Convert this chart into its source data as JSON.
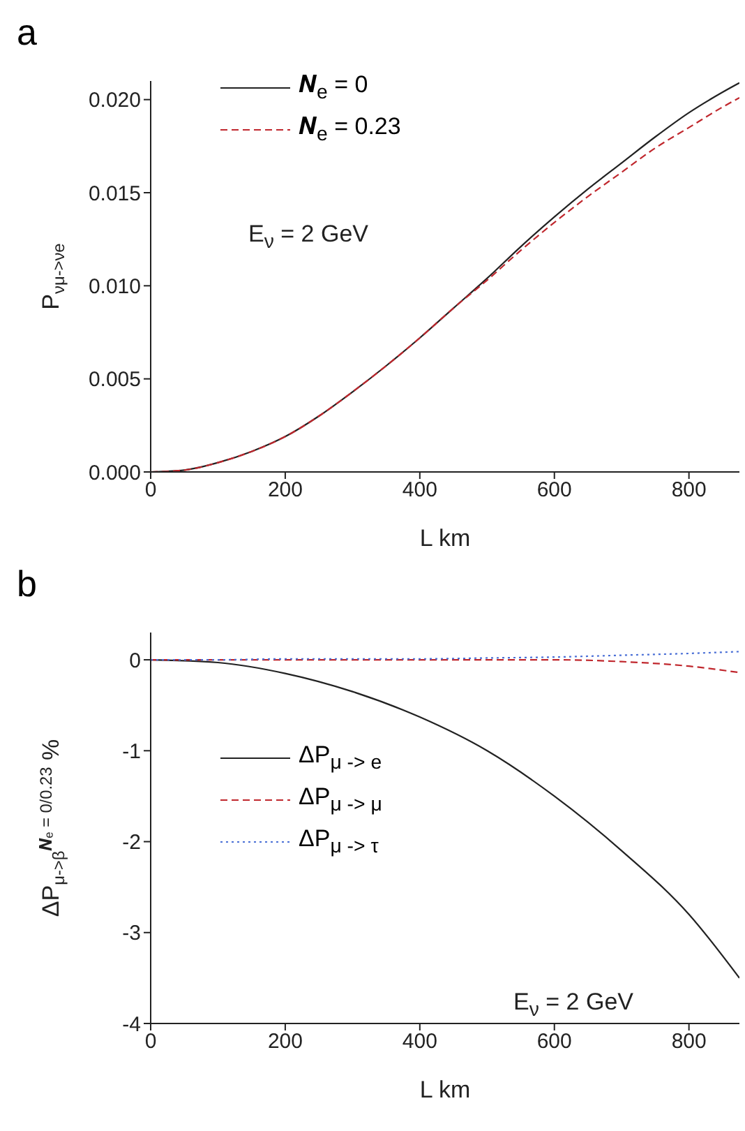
{
  "chart_data": [
    {
      "type": "line",
      "title": "a",
      "xlabel": "L km",
      "ylabel": "P$_{νμ->νe}$",
      "annotations": [
        "E$_{ν}$ = 2 GeV"
      ],
      "x": [
        0,
        50,
        100,
        150,
        200,
        250,
        300,
        350,
        400,
        450,
        500,
        550,
        600,
        650,
        700,
        750,
        800,
        850,
        875
      ],
      "xlim": [
        0,
        875
      ],
      "xticks": [
        0,
        200,
        400,
        600,
        800
      ],
      "ylim": [
        0,
        0.021
      ],
      "yticks": [
        {
          "value": 0,
          "label": "0.000"
        },
        {
          "value": 0.005,
          "label": "0.005"
        },
        {
          "value": 0.01,
          "label": "0.010"
        },
        {
          "value": 0.015,
          "label": "0.015"
        },
        {
          "value": 0.02,
          "label": "0.020"
        }
      ],
      "legend": "top left",
      "marker": "none",
      "series": [
        {
          "name": "𝑵$_{e}$ = 0",
          "color": "#222222",
          "line_style": "solid",
          "values": [
            0,
            0.0001,
            0.0005,
            0.0011,
            0.0019,
            0.003,
            0.0043,
            0.0057,
            0.0072,
            0.0088,
            0.0104,
            0.0121,
            0.0137,
            0.0152,
            0.0166,
            0.018,
            0.0193,
            0.0204,
            0.0209
          ]
        },
        {
          "name": "𝑵$_{e}$ = 0.23",
          "color": "#c0272d",
          "line_style": "dashed",
          "values": [
            0,
            0.0001,
            0.0005,
            0.0011,
            0.0019,
            0.003,
            0.0043,
            0.0057,
            0.0072,
            0.0088,
            0.0103,
            0.0119,
            0.0134,
            0.0148,
            0.0161,
            0.0174,
            0.0185,
            0.0196,
            0.0201
          ]
        }
      ]
    },
    {
      "type": "line",
      "title": "b",
      "xlabel": "L km",
      "ylabel": "ΔP$_{μ->β}$$^{𝑵ₑ = 0/0.23}$ %",
      "annotations": [
        "E$_{ν}$ = 2 GeV"
      ],
      "x": [
        0,
        100,
        200,
        300,
        400,
        500,
        600,
        700,
        800,
        875
      ],
      "xlim": [
        0,
        875
      ],
      "xticks": [
        0,
        200,
        400,
        600,
        800
      ],
      "ylim": [
        -4,
        0.3
      ],
      "yticks": [
        -4,
        -3,
        -2,
        -1,
        0
      ],
      "legend": "left",
      "marker": "none",
      "series": [
        {
          "name": "ΔP$_{μ -> e}$",
          "color": "#222222",
          "line_style": "solid",
          "values": [
            0,
            -0.03,
            -0.15,
            -0.35,
            -0.63,
            -1.0,
            -1.5,
            -2.1,
            -2.8,
            -3.5
          ]
        },
        {
          "name": "ΔP$_{μ -> μ}$",
          "color": "#c0272d",
          "line_style": "dashed",
          "values": [
            0,
            0,
            0,
            0,
            0,
            0,
            0,
            -0.02,
            -0.07,
            -0.14
          ]
        },
        {
          "name": "ΔP$_{μ -> τ}$",
          "color": "#4a6fd6",
          "line_style": "dotted",
          "values": [
            0,
            0,
            0.01,
            0.01,
            0.01,
            0.02,
            0.03,
            0.05,
            0.07,
            0.09
          ]
        }
      ]
    }
  ]
}
